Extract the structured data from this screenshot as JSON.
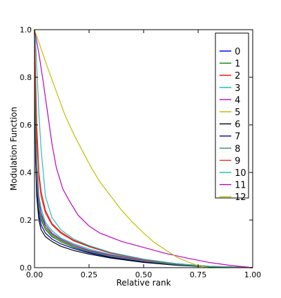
{
  "chart_data": {
    "type": "line",
    "title": "",
    "xlabel": "Relative rank",
    "ylabel": "Modulation Function",
    "xlim": [
      0.0,
      1.0
    ],
    "ylim": [
      0.0,
      1.0
    ],
    "xticks": [
      "0.00",
      "0.25",
      "0.50",
      "0.75",
      "1.00"
    ],
    "xtick_values": [
      0.0,
      0.25,
      0.5,
      0.75,
      1.0
    ],
    "yticks": [
      "0.0",
      "0.2",
      "0.4",
      "0.6",
      "0.8",
      "1.0"
    ],
    "ytick_values": [
      0.0,
      0.2,
      0.4,
      0.6,
      0.8,
      1.0
    ],
    "grid": false,
    "legend_position": "top-right",
    "series": [
      {
        "name": "0",
        "color": "#0000ff",
        "x": [
          0,
          0.005,
          0.01,
          0.02,
          0.03,
          0.05,
          0.08,
          0.12,
          0.18,
          0.25,
          0.35,
          0.5,
          0.65,
          0.8,
          1.0
        ],
        "y": [
          1.0,
          0.55,
          0.35,
          0.24,
          0.2,
          0.16,
          0.13,
          0.11,
          0.085,
          0.065,
          0.045,
          0.025,
          0.012,
          0.004,
          0.0
        ]
      },
      {
        "name": "1",
        "color": "#008000",
        "x": [
          0,
          0.005,
          0.01,
          0.02,
          0.03,
          0.05,
          0.08,
          0.12,
          0.18,
          0.25,
          0.35,
          0.5,
          0.65,
          0.8,
          1.0
        ],
        "y": [
          1.0,
          0.6,
          0.4,
          0.27,
          0.22,
          0.17,
          0.14,
          0.115,
          0.09,
          0.07,
          0.05,
          0.03,
          0.014,
          0.005,
          0.0
        ]
      },
      {
        "name": "2",
        "color": "#ff0000",
        "x": [
          0,
          0.005,
          0.01,
          0.02,
          0.03,
          0.05,
          0.08,
          0.12,
          0.18,
          0.25,
          0.35,
          0.5,
          0.65,
          0.8,
          1.0
        ],
        "y": [
          1.0,
          0.8,
          0.6,
          0.4,
          0.32,
          0.24,
          0.185,
          0.15,
          0.115,
          0.09,
          0.062,
          0.035,
          0.017,
          0.006,
          0.0
        ]
      },
      {
        "name": "3",
        "color": "#00bfbf",
        "x": [
          0,
          0.005,
          0.01,
          0.02,
          0.03,
          0.05,
          0.08,
          0.12,
          0.18,
          0.25,
          0.35,
          0.5,
          0.65,
          0.8,
          1.0
        ],
        "y": [
          1.0,
          0.65,
          0.45,
          0.3,
          0.25,
          0.19,
          0.155,
          0.125,
          0.1,
          0.078,
          0.055,
          0.032,
          0.015,
          0.005,
          0.0
        ]
      },
      {
        "name": "4",
        "color": "#bf00bf",
        "x": [
          0,
          0.005,
          0.01,
          0.02,
          0.03,
          0.05,
          0.08,
          0.12,
          0.18,
          0.25,
          0.35,
          0.5,
          0.65,
          0.8,
          1.0
        ],
        "y": [
          1.0,
          0.62,
          0.42,
          0.28,
          0.23,
          0.18,
          0.145,
          0.12,
          0.095,
          0.073,
          0.052,
          0.03,
          0.014,
          0.005,
          0.0
        ]
      },
      {
        "name": "5",
        "color": "#bfbf00",
        "x": [
          0,
          0.005,
          0.01,
          0.02,
          0.03,
          0.05,
          0.08,
          0.12,
          0.18,
          0.25,
          0.35,
          0.5,
          0.65,
          0.8,
          1.0
        ],
        "y": [
          1.0,
          0.58,
          0.38,
          0.26,
          0.21,
          0.165,
          0.135,
          0.11,
          0.088,
          0.068,
          0.048,
          0.028,
          0.013,
          0.004,
          0.0
        ]
      },
      {
        "name": "6",
        "color": "#000000",
        "x": [
          0,
          0.005,
          0.01,
          0.02,
          0.03,
          0.05,
          0.08,
          0.12,
          0.18,
          0.25,
          0.35,
          0.5,
          0.65,
          0.8,
          1.0
        ],
        "y": [
          1.0,
          0.45,
          0.3,
          0.2,
          0.16,
          0.13,
          0.11,
          0.09,
          0.072,
          0.057,
          0.04,
          0.022,
          0.01,
          0.003,
          0.0
        ]
      },
      {
        "name": "7",
        "color": "#00008b",
        "x": [
          0,
          0.005,
          0.01,
          0.02,
          0.03,
          0.05,
          0.08,
          0.12,
          0.18,
          0.25,
          0.35,
          0.5,
          0.65,
          0.8,
          1.0
        ],
        "y": [
          1.0,
          0.5,
          0.32,
          0.22,
          0.18,
          0.145,
          0.12,
          0.1,
          0.08,
          0.062,
          0.043,
          0.024,
          0.011,
          0.004,
          0.0
        ]
      },
      {
        "name": "8",
        "color": "#2e8b57",
        "x": [
          0,
          0.005,
          0.01,
          0.02,
          0.03,
          0.05,
          0.08,
          0.12,
          0.18,
          0.25,
          0.35,
          0.5,
          0.65,
          0.8,
          1.0
        ],
        "y": [
          1.0,
          0.57,
          0.37,
          0.25,
          0.205,
          0.16,
          0.132,
          0.108,
          0.086,
          0.067,
          0.047,
          0.027,
          0.013,
          0.004,
          0.0
        ]
      },
      {
        "name": "9",
        "color": "#e03020",
        "x": [
          0,
          0.005,
          0.01,
          0.02,
          0.03,
          0.05,
          0.08,
          0.12,
          0.18,
          0.25,
          0.35,
          0.5,
          0.65,
          0.8,
          1.0
        ],
        "y": [
          1.0,
          0.75,
          0.55,
          0.38,
          0.3,
          0.23,
          0.18,
          0.145,
          0.112,
          0.088,
          0.06,
          0.034,
          0.016,
          0.006,
          0.0
        ]
      },
      {
        "name": "10",
        "color": "#20c0c0",
        "x": [
          0,
          0.005,
          0.01,
          0.02,
          0.03,
          0.05,
          0.08,
          0.12,
          0.18,
          0.25,
          0.35,
          0.5,
          0.65,
          0.8,
          1.0
        ],
        "y": [
          1.0,
          0.95,
          0.85,
          0.65,
          0.5,
          0.3,
          0.21,
          0.16,
          0.12,
          0.093,
          0.064,
          0.036,
          0.017,
          0.006,
          0.0
        ]
      },
      {
        "name": "11",
        "color": "#c000c0",
        "x": [
          0,
          0.02,
          0.04,
          0.06,
          0.08,
          0.1,
          0.13,
          0.16,
          0.2,
          0.25,
          0.3,
          0.4,
          0.5,
          0.6,
          0.7,
          0.8,
          0.9,
          1.0
        ],
        "y": [
          1.0,
          0.9,
          0.78,
          0.65,
          0.52,
          0.42,
          0.33,
          0.28,
          0.22,
          0.175,
          0.145,
          0.11,
          0.085,
          0.06,
          0.04,
          0.022,
          0.009,
          0.0
        ]
      },
      {
        "name": "12",
        "color": "#c0c000",
        "x": [
          0,
          0.03,
          0.06,
          0.1,
          0.14,
          0.18,
          0.22,
          0.26,
          0.3,
          0.35,
          0.4,
          0.45,
          0.5,
          0.55,
          0.6,
          0.65,
          0.7,
          0.75,
          0.8,
          0.9,
          1.0
        ],
        "y": [
          1.0,
          0.92,
          0.84,
          0.74,
          0.64,
          0.56,
          0.49,
          0.42,
          0.36,
          0.3,
          0.24,
          0.19,
          0.145,
          0.105,
          0.075,
          0.045,
          0.025,
          0.008,
          0.0,
          0.0,
          0.0
        ]
      }
    ]
  }
}
